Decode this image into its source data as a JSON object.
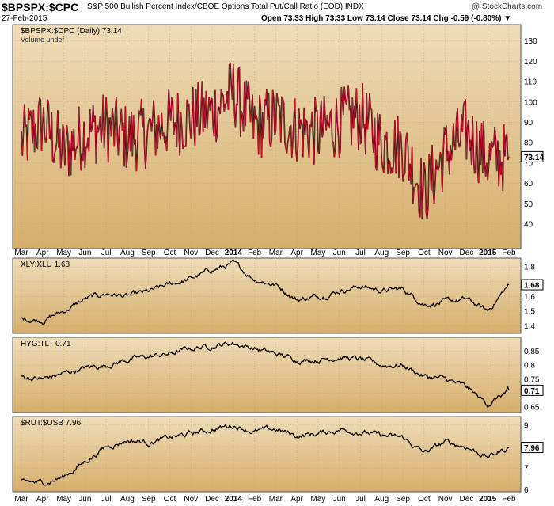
{
  "header": {
    "symbol": "$BPSPX:$CPC",
    "description": "S&P 500 Bullish Percent Index/CBOE Options Total Put/Call Ratio (EOD) INDX",
    "date": "27-Feb-2015",
    "credit": "@ StockCharts.com",
    "quote": "Open 73.33  High 73.33  Low 73.14  Close 73.14  Chg -0.59 (-0.80%) ▼"
  },
  "x_axis_labels": [
    "Mar",
    "Apr",
    "May",
    "Jun",
    "Jul",
    "Aug",
    "Sep",
    "Oct",
    "Nov",
    "Dec",
    "2014",
    "Feb",
    "Mar",
    "Apr",
    "May",
    "Jun",
    "Jul",
    "Aug",
    "Sep",
    "Oct",
    "Nov",
    "Dec",
    "2015",
    "Feb"
  ],
  "colors": {
    "background_top": "#eedcb8",
    "background_bottom": "#d6ae6c",
    "main_line": "#c8102e",
    "secondary_line": "#000000"
  },
  "chart_data": [
    {
      "type": "line",
      "legend": "$BPSPX:$CPC (Daily) 73.14",
      "sublegend": "Volume undef",
      "last_value_label": "73.14",
      "ylim": [
        28,
        138
      ],
      "yticks": [
        40,
        50,
        60,
        70,
        80,
        90,
        100,
        110,
        120,
        130
      ],
      "x": [
        "2013-03",
        "2013-04",
        "2013-05",
        "2013-06",
        "2013-07",
        "2013-08",
        "2013-09",
        "2013-10",
        "2013-11",
        "2013-12",
        "2014-01",
        "2014-02",
        "2014-03",
        "2014-04",
        "2014-05",
        "2014-06",
        "2014-07",
        "2014-08",
        "2014-09",
        "2014-10",
        "2014-11",
        "2014-12",
        "2015-01",
        "2015-02"
      ],
      "series": [
        {
          "values": [
            80,
            90,
            75,
            85,
            88,
            82,
            85,
            90,
            92,
            95,
            105,
            88,
            92,
            87,
            85,
            90,
            93,
            80,
            78,
            55,
            75,
            85,
            72,
            73.14
          ]
        }
      ]
    },
    {
      "type": "line",
      "legend": "XLY:XLU 1.68",
      "last_value_label": "1.68",
      "ylim": [
        1.35,
        1.86
      ],
      "yticks": [
        1.4,
        1.5,
        1.6,
        1.7,
        1.8
      ],
      "x": [
        "2013-03",
        "2013-04",
        "2013-05",
        "2013-06",
        "2013-07",
        "2013-08",
        "2013-09",
        "2013-10",
        "2013-11",
        "2013-12",
        "2014-01",
        "2014-02",
        "2014-03",
        "2014-04",
        "2014-05",
        "2014-06",
        "2014-07",
        "2014-08",
        "2014-09",
        "2014-10",
        "2014-11",
        "2014-12",
        "2015-01",
        "2015-02"
      ],
      "series": [
        {
          "values": [
            1.45,
            1.44,
            1.5,
            1.58,
            1.62,
            1.6,
            1.63,
            1.68,
            1.72,
            1.78,
            1.82,
            1.72,
            1.68,
            1.58,
            1.6,
            1.64,
            1.67,
            1.64,
            1.65,
            1.55,
            1.56,
            1.58,
            1.5,
            1.68
          ]
        }
      ]
    },
    {
      "type": "line",
      "legend": "HYG:TLT 0.71",
      "last_value_label": "0.71",
      "ylim": [
        0.63,
        0.9
      ],
      "yticks": [
        0.65,
        0.7,
        0.75,
        0.8,
        0.85
      ],
      "x": [
        "2013-03",
        "2013-04",
        "2013-05",
        "2013-06",
        "2013-07",
        "2013-08",
        "2013-09",
        "2013-10",
        "2013-11",
        "2013-12",
        "2014-01",
        "2014-02",
        "2014-03",
        "2014-04",
        "2014-05",
        "2014-06",
        "2014-07",
        "2014-08",
        "2014-09",
        "2014-10",
        "2014-11",
        "2014-12",
        "2015-01",
        "2015-02"
      ],
      "series": [
        {
          "values": [
            0.76,
            0.75,
            0.77,
            0.79,
            0.8,
            0.82,
            0.83,
            0.84,
            0.86,
            0.87,
            0.88,
            0.86,
            0.84,
            0.82,
            0.82,
            0.83,
            0.82,
            0.8,
            0.8,
            0.76,
            0.75,
            0.72,
            0.66,
            0.71
          ]
        }
      ]
    },
    {
      "type": "line",
      "legend": "$RUT:$USB 7.96",
      "last_value_label": "7.96",
      "ylim": [
        5.9,
        9.4
      ],
      "yticks": [
        6,
        7,
        8,
        9
      ],
      "x": [
        "2013-03",
        "2013-04",
        "2013-05",
        "2013-06",
        "2013-07",
        "2013-08",
        "2013-09",
        "2013-10",
        "2013-11",
        "2013-12",
        "2014-01",
        "2014-02",
        "2014-03",
        "2014-04",
        "2014-05",
        "2014-06",
        "2014-07",
        "2014-08",
        "2014-09",
        "2014-10",
        "2014-11",
        "2014-12",
        "2015-01",
        "2015-02"
      ],
      "series": [
        {
          "values": [
            6.4,
            6.3,
            6.6,
            7.3,
            8.0,
            8.3,
            8.2,
            8.4,
            8.6,
            8.8,
            9.0,
            8.7,
            8.8,
            8.5,
            8.6,
            8.8,
            8.7,
            8.5,
            8.4,
            7.7,
            8.2,
            8.0,
            7.5,
            7.96
          ]
        }
      ]
    }
  ]
}
